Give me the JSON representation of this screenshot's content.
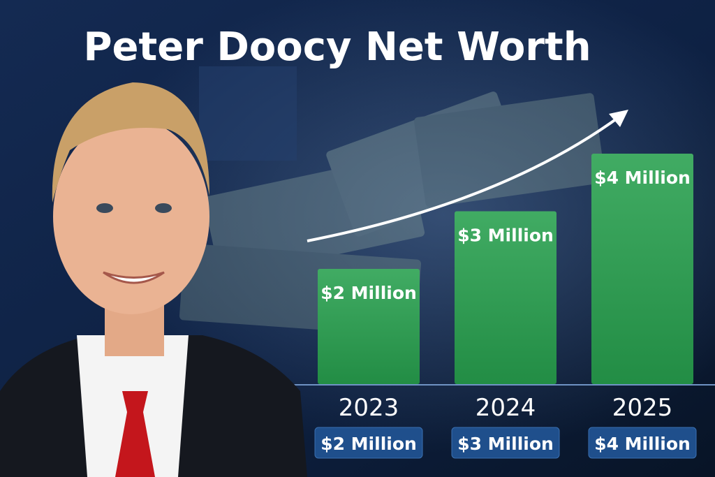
{
  "chart_data": {
    "type": "bar",
    "title": "Peter Doocy Net Worth",
    "categories": [
      "2023",
      "2024",
      "2025"
    ],
    "values": [
      2,
      3,
      4
    ],
    "value_labels": [
      "$2 Million",
      "$3 Million",
      "$4 Million"
    ],
    "color": "#27a04e"
  }
}
